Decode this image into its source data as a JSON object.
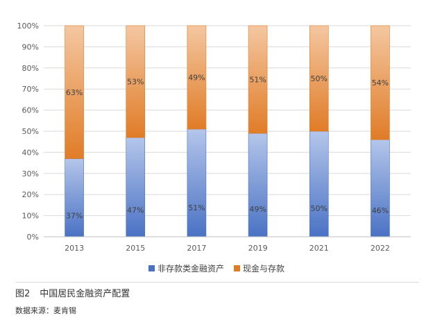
{
  "chart_data": {
    "type": "bar",
    "stacked": true,
    "categories": [
      "2013",
      "2015",
      "2017",
      "2019",
      "2021",
      "2022"
    ],
    "series": [
      {
        "name": "非存款类金融资产",
        "values": [
          37,
          47,
          51,
          49,
          50,
          46
        ],
        "labels": [
          "37%",
          "47%",
          "51%",
          "49%",
          "50%",
          "46%"
        ],
        "color_top": "#b4c6ea",
        "color_bottom": "#4a72c4"
      },
      {
        "name": "现金与存款",
        "values": [
          63,
          53,
          49,
          51,
          50,
          54
        ],
        "labels": [
          "63%",
          "53%",
          "49%",
          "51%",
          "50%",
          "54%"
        ],
        "color_top": "#f4c7a1",
        "color_bottom": "#e07c27"
      }
    ],
    "ylim": [
      0,
      100
    ],
    "yticks": [
      "0%",
      "10%",
      "20%",
      "30%",
      "40%",
      "50%",
      "60%",
      "70%",
      "80%",
      "90%",
      "100%"
    ],
    "grid": true,
    "legend_position": "bottom",
    "title": "",
    "xlabel": "",
    "ylabel": ""
  },
  "caption": {
    "number": "图2",
    "text": "中国居民金融资产配置"
  },
  "source": "数据来源：麦肯锡"
}
